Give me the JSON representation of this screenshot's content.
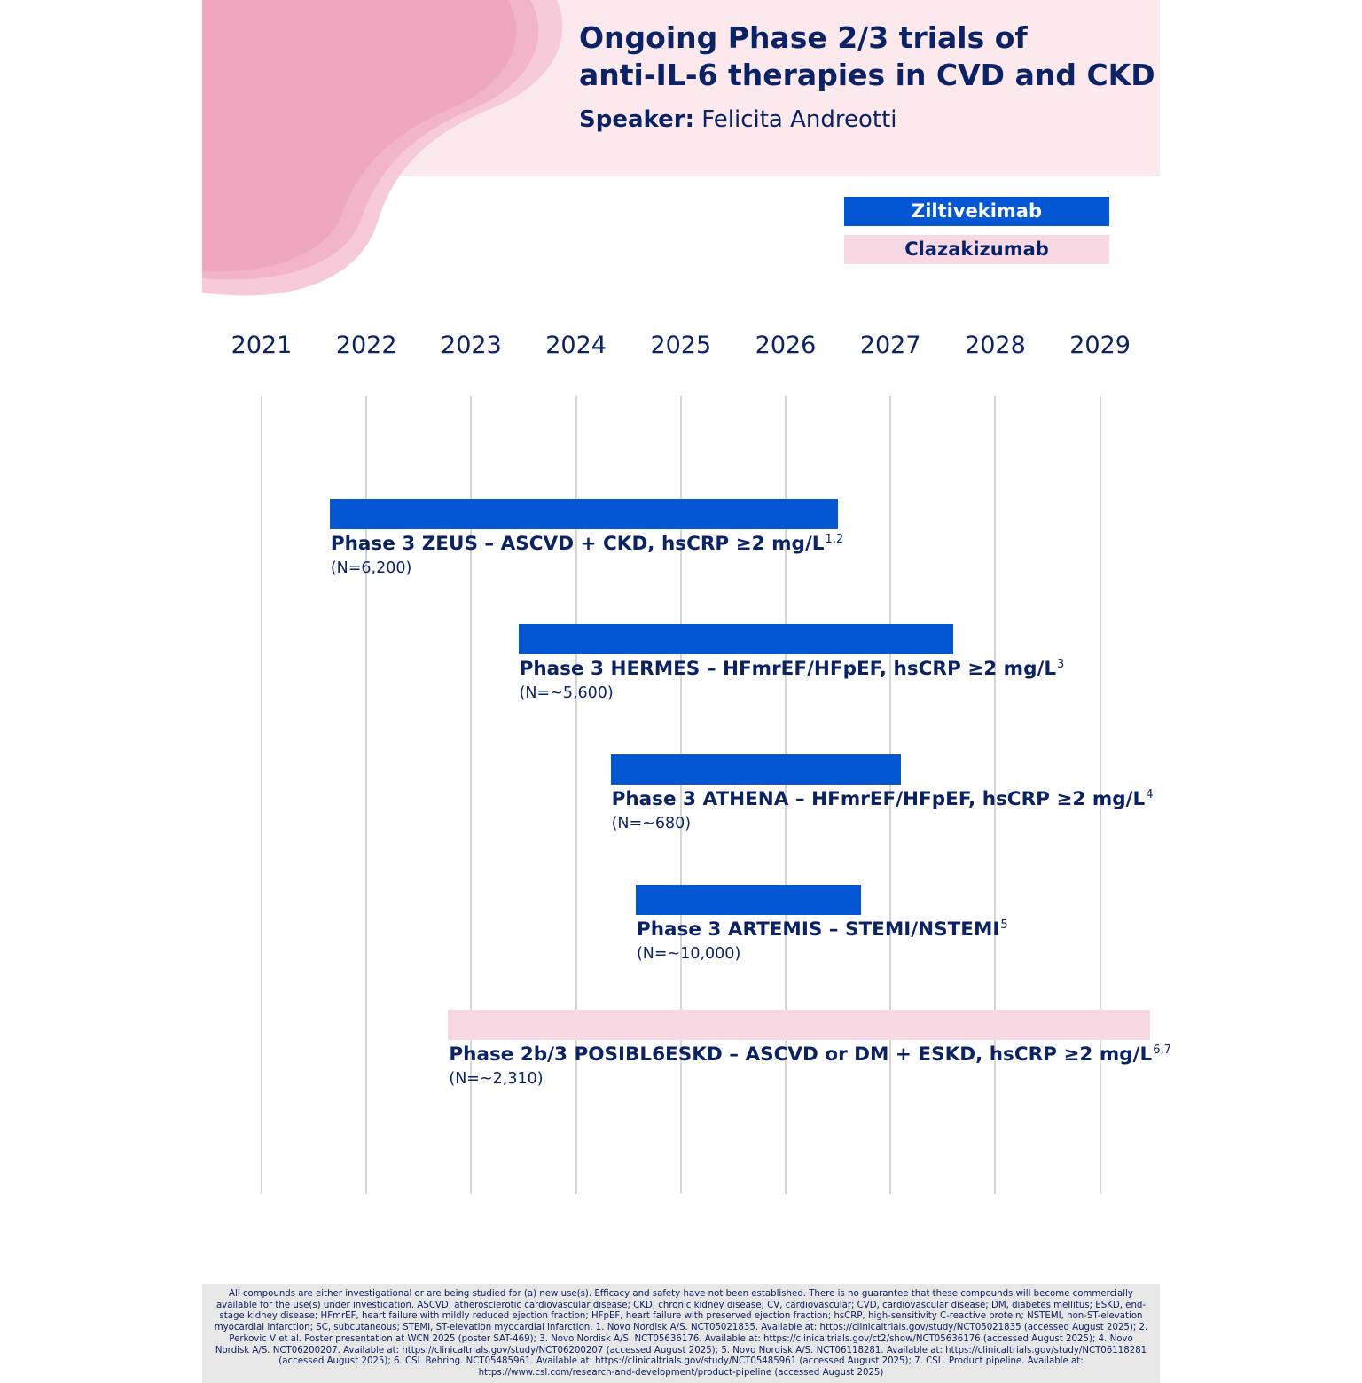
{
  "header": {
    "title_line1": "Ongoing Phase 2/3 trials of",
    "title_line2": "anti-IL-6 therapies in CVD and CKD",
    "speaker_label": "Speaker:",
    "speaker_name": "Felicita Andreotti"
  },
  "legend": [
    {
      "label": "Ziltivekimab",
      "color": "#0357d2"
    },
    {
      "label": "Clazakizumab",
      "color": "#f7d8e3"
    }
  ],
  "timeline": {
    "years": [
      "2021",
      "2022",
      "2023",
      "2024",
      "2025",
      "2026",
      "2027",
      "2028",
      "2029"
    ],
    "trials": [
      {
        "title": "Phase 3 ZEUS – ASCVD + CKD, hsCRP ≥2 mg/L",
        "refs": "1,2",
        "n": "(N=6,200)",
        "drug": "Ziltivekimab",
        "start_year": 2021.65,
        "end_year": 2026.5
      },
      {
        "title": "Phase 3 HERMES – HFmrEF/HFpEF, hsCRP ≥2 mg/L",
        "refs": "3",
        "n": "(N=~5,600)",
        "drug": "Ziltivekimab",
        "start_year": 2023.45,
        "end_year": 2027.6
      },
      {
        "title": "Phase 3 ATHENA – HFmrEF/HFpEF, hsCRP ≥2 mg/L",
        "refs": "4",
        "n": "(N=~680)",
        "drug": "Ziltivekimab",
        "start_year": 2024.33,
        "end_year": 2027.1
      },
      {
        "title": "Phase 3 ARTEMIS – STEMI/NSTEMI",
        "refs": "5",
        "n": "(N=~10,000)",
        "drug": "Ziltivekimab",
        "start_year": 2024.57,
        "end_year": 2026.72
      },
      {
        "title": "Phase 2b/3 POSIBL6ESKD – ASCVD or DM + ESKD, hsCRP ≥2 mg/L",
        "refs": "6,7",
        "n": "(N=~2,310)",
        "drug": "Clazakizumab",
        "start_year": 2022.78,
        "end_year": 2029.48
      }
    ]
  },
  "footer": {
    "text": "All compounds are either investigational or are being studied for (a) new use(s). Efficacy and safety have not been established. There is no guarantee that these compounds will become commercially available for the use(s) under investigation. ASCVD, atherosclerotic cardiovascular disease; CKD, chronic kidney disease; CV, cardiovascular; CVD, cardiovascular disease; DM, diabetes mellitus; ESKD, end-stage kidney disease; HFmrEF, heart failure with mildly reduced ejection fraction; HFpEF, heart failure with preserved ejection fraction; hsCRP, high-sensitivity C-reactive protein; NSTEMI, non-ST-elevation myocardial infarction; SC, subcutaneous; STEMI, ST-elevation myocardial infarction. 1. Novo Nordisk A/S. NCT05021835. Available at: https://clinicaltrials.gov/study/NCT05021835 (accessed August 2025); 2. Perkovic V et al. Poster presentation at WCN 2025 (poster SAT-469); 3. Novo Nordisk A/S. NCT05636176. Available at: https://clinicaltrials.gov/ct2/show/NCT05636176 (accessed August 2025); 4. Novo Nordisk A/S. NCT06200207. Available at: https://clinicaltrials.gov/study/NCT06200207 (accessed August 2025); 5. Novo Nordisk A/S. NCT06118281. Available at: https://clinicaltrials.gov/study/NCT06118281 (accessed August 2025); 6. CSL Behring. NCT05485961. Available at: https://clinicaltrials.gov/study/NCT05485961 (accessed August 2025); 7. CSL. Product pipeline. Available at: https://www.csl.com/research-and-development/product-pipeline (accessed August 2025)"
  }
}
